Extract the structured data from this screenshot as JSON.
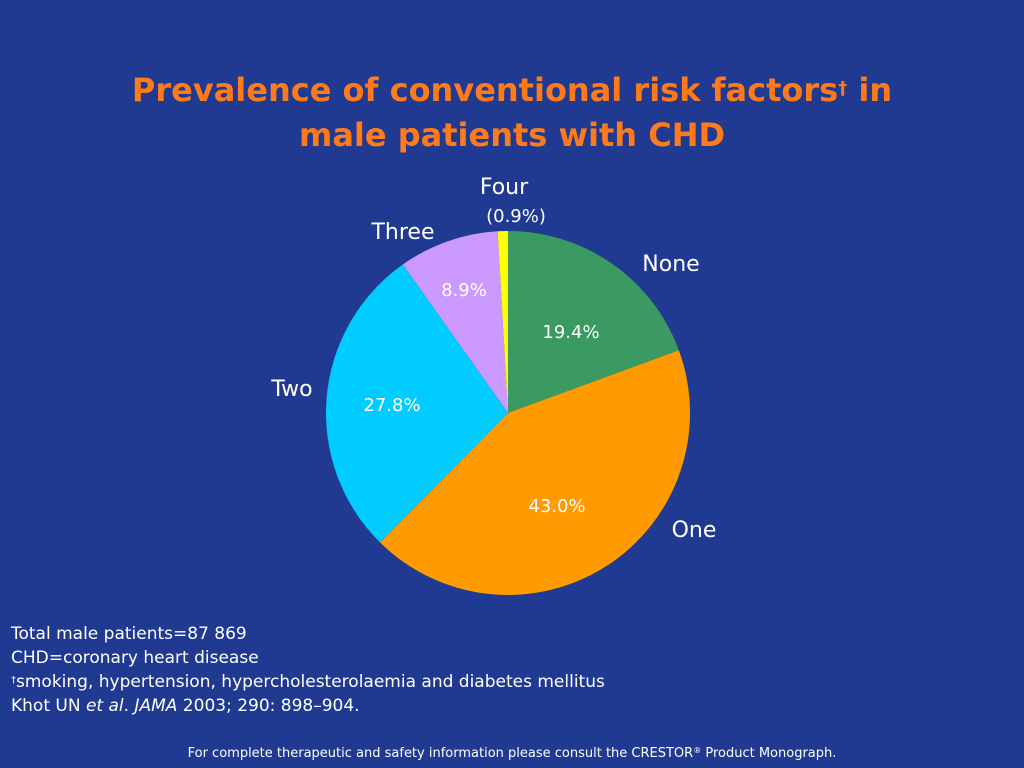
{
  "slide": {
    "title_line1": "Prevalence of conventional risk factors",
    "title_dagger": "†",
    "title_line1_end": " in",
    "title_line2": "male patients with CHD"
  },
  "chart_data": {
    "type": "pie",
    "slices": [
      {
        "category": "None",
        "value": 19.4,
        "label": "19.4%",
        "color": "#3a9a61"
      },
      {
        "category": "One",
        "value": 43.0,
        "label": "43.0%",
        "color": "#ff9a00"
      },
      {
        "category": "Two",
        "value": 27.8,
        "label": "27.8%",
        "color": "#00ccff"
      },
      {
        "category": "Three",
        "value": 8.9,
        "label": "8.9%",
        "color": "#cc99ff"
      },
      {
        "category": "Four",
        "value": 0.9,
        "label": "(0.9%)",
        "color": "#ffff00"
      }
    ],
    "start": "12 o'clock",
    "direction": "clockwise",
    "legend": "none"
  },
  "notes": {
    "line1": "Total male patients=87 869",
    "line2": "CHD=coronary heart disease",
    "line3_dagger": "†",
    "line3": "smoking, hypertension, hypercholesterolaemia and diabetes mellitus",
    "ref_author": "Khot UN ",
    "ref_etal": "et al",
    "ref_sep": ". ",
    "ref_journal": "JAMA",
    "ref_rest": " 2003; 290: 898–904."
  },
  "footer": {
    "text_before": "For complete therapeutic and safety information please consult the CRESTOR",
    "reg_mark": "®",
    "text_after": " Product Monograph."
  }
}
